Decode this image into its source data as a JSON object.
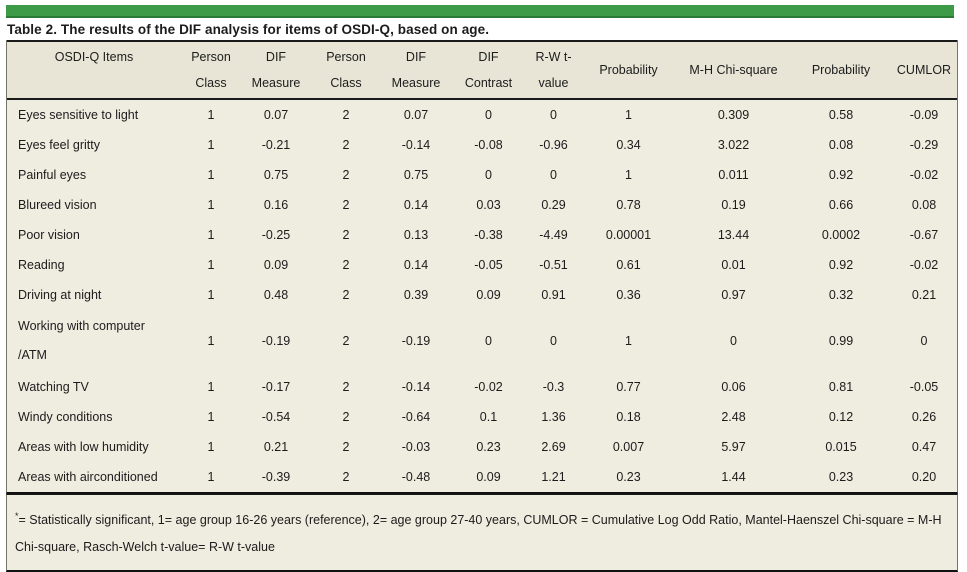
{
  "colors": {
    "accent_bar": "#3d9b48",
    "accent_bar_edge": "#2a7b35",
    "header_bg": "#e8e5d6",
    "body_bg": "#efece0",
    "text": "#1c1c1c"
  },
  "title": "Table 2. The results of the DIF analysis for items of OSDI-Q, based on age.",
  "chart_data": {
    "type": "table",
    "title": "Table 2. The results of the DIF analysis for items of OSDI-Q, based on age.",
    "columns": [
      "OSDI-Q Items",
      "Person Class",
      "DIF Measure",
      "Person Class",
      "DIF Measure",
      "DIF Contrast",
      "R-W t-value",
      "Probability",
      "M-H Chi-square",
      "Probability",
      "CUMLOR"
    ]
  },
  "table": {
    "columns": [
      {
        "line1": "OSDI-Q Items",
        "line2": ""
      },
      {
        "line1": "Person",
        "line2": "Class"
      },
      {
        "line1": "DIF",
        "line2": "Measure"
      },
      {
        "line1": "Person",
        "line2": "Class"
      },
      {
        "line1": "DIF",
        "line2": "Measure"
      },
      {
        "line1": "DIF",
        "line2": "Contrast"
      },
      {
        "line1": "R-W t-",
        "line2": "value"
      },
      {
        "line1": "Probability",
        "line2": ""
      },
      {
        "line1": "M-H Chi-square",
        "line2": ""
      },
      {
        "line1": "Probability",
        "line2": ""
      },
      {
        "line1": "CUMLOR",
        "line2": ""
      }
    ],
    "rows": [
      {
        "item": "Eyes sensitive to light",
        "values": [
          "1",
          "0.07",
          "2",
          "0.07",
          "0",
          "0",
          "1",
          "0.309",
          "0.58",
          "-0.09"
        ]
      },
      {
        "item": "Eyes feel gritty",
        "values": [
          "1",
          "-0.21",
          "2",
          "-0.14",
          "-0.08",
          "-0.96",
          "0.34",
          "3.022",
          "0.08",
          "-0.29"
        ]
      },
      {
        "item": "Painful eyes",
        "values": [
          "1",
          "0.75",
          "2",
          "0.75",
          "0",
          "0",
          "1",
          "0.011",
          "0.92",
          "-0.02"
        ]
      },
      {
        "item": "Blureed vision",
        "values": [
          "1",
          "0.16",
          "2",
          "0.14",
          "0.03",
          "0.29",
          "0.78",
          "0.19",
          "0.66",
          "0.08"
        ]
      },
      {
        "item": "Poor vision",
        "values": [
          "1",
          "-0.25",
          "2",
          "0.13",
          "-0.38",
          "-4.49",
          "0.00001",
          "13.44",
          "0.0002",
          "-0.67"
        ]
      },
      {
        "item": "Reading",
        "values": [
          "1",
          "0.09",
          "2",
          "0.14",
          "-0.05",
          "-0.51",
          "0.61",
          "0.01",
          "0.92",
          "-0.02"
        ]
      },
      {
        "item": "Driving at night",
        "values": [
          "1",
          "0.48",
          "2",
          "0.39",
          "0.09",
          "0.91",
          "0.36",
          "0.97",
          "0.32",
          "0.21"
        ]
      },
      {
        "item": "Working with computer",
        "item_line2": "/ATM",
        "values": [
          "1",
          "-0.19",
          "2",
          "-0.19",
          "0",
          "0",
          "1",
          "0",
          "0.99",
          "0"
        ]
      },
      {
        "item": "Watching TV",
        "values": [
          "1",
          "-0.17",
          "2",
          "-0.14",
          "-0.02",
          "-0.3",
          "0.77",
          "0.06",
          "0.81",
          "-0.05"
        ]
      },
      {
        "item": "Windy conditions",
        "values": [
          "1",
          "-0.54",
          "2",
          "-0.64",
          "0.1",
          "1.36",
          "0.18",
          "2.48",
          "0.12",
          "0.26"
        ]
      },
      {
        "item": "Areas with low humidity",
        "values": [
          "1",
          "0.21",
          "2",
          "-0.03",
          "0.23",
          "2.69",
          "0.007",
          "5.97",
          "0.015",
          "0.47"
        ]
      },
      {
        "item": "Areas with airconditioned",
        "values": [
          "1",
          "-0.39",
          "2",
          "-0.48",
          "0.09",
          "1.21",
          "0.23",
          "1.44",
          "0.23",
          "0.20"
        ]
      }
    ]
  },
  "footnote": {
    "sup": "*",
    "text": "= Statistically significant, 1= age group 16-26 years (reference), 2= age group 27-40 years, CUMLOR = Cumulative Log Odd Ratio, Mantel-Haenszel Chi-square = M-H Chi-square, Rasch-Welch t-value= R-W t-value"
  }
}
